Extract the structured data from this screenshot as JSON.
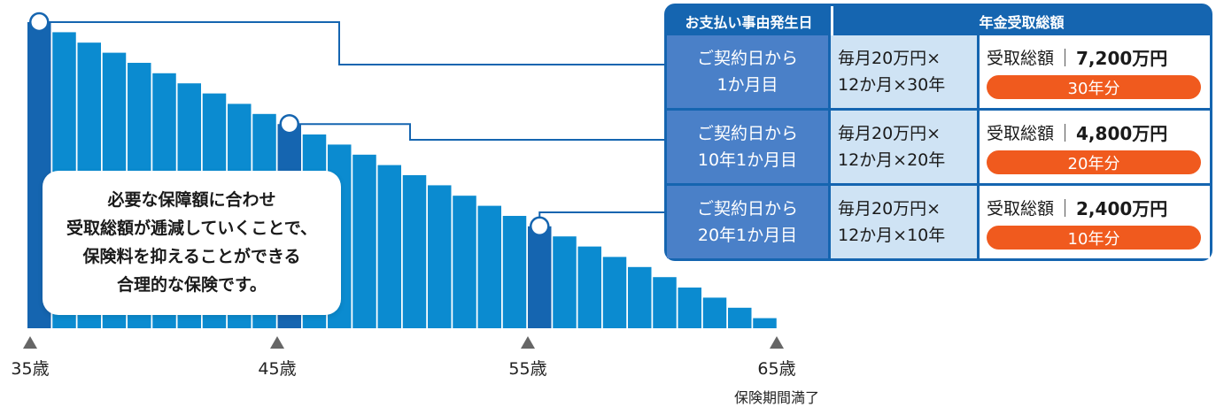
{
  "chart_data": {
    "type": "bar",
    "values": [
      100,
      96.7,
      93.3,
      90,
      86.7,
      83.3,
      80,
      76.7,
      73.3,
      70,
      66.7,
      63.3,
      60,
      56.7,
      53.3,
      50,
      46.7,
      43.3,
      40,
      36.7,
      33.3,
      30,
      26.7,
      23.3,
      20,
      16.7,
      13.3,
      10,
      6.7,
      3.3
    ],
    "highlighted_indices": [
      0,
      10,
      20
    ],
    "x_ticks": [
      "35歳",
      "45歳",
      "55歳",
      "65歳"
    ],
    "maturity_note": "保険期間満了",
    "colors": {
      "bar": "#0b8bd0",
      "highlight": "#1565b0",
      "marker": "#666666",
      "connector": "#1565b0"
    }
  },
  "callout": {
    "lines": [
      "必要な保障額に合わせ",
      "受取総額が逓減していくことで、",
      "保険料を抑えることができる",
      "合理的な保険です。"
    ]
  },
  "table": {
    "header_left": "お支払い事由発生日",
    "header_right": "年金受取総額",
    "total_label": "受取総額",
    "rows": [
      {
        "timing": [
          "ご契約日から",
          "1か月目"
        ],
        "monthly": [
          "毎月20万円×",
          "12か月×30年"
        ],
        "amount": "7,200万円",
        "years": "30年分"
      },
      {
        "timing": [
          "ご契約日から",
          "10年1か月目"
        ],
        "monthly": [
          "毎月20万円×",
          "12か月×20年"
        ],
        "amount": "4,800万円",
        "years": "20年分"
      },
      {
        "timing": [
          "ご契約日から",
          "20年1か月目"
        ],
        "monthly": [
          "毎月20万円×",
          "12か月×10年"
        ],
        "amount": "2,400万円",
        "years": "10年分"
      }
    ],
    "colors": {
      "frame": "#1565b0",
      "timing_bg": "#4a80c8",
      "monthly_bg": "#cfe3f4",
      "pill": "#f05a1e"
    }
  }
}
